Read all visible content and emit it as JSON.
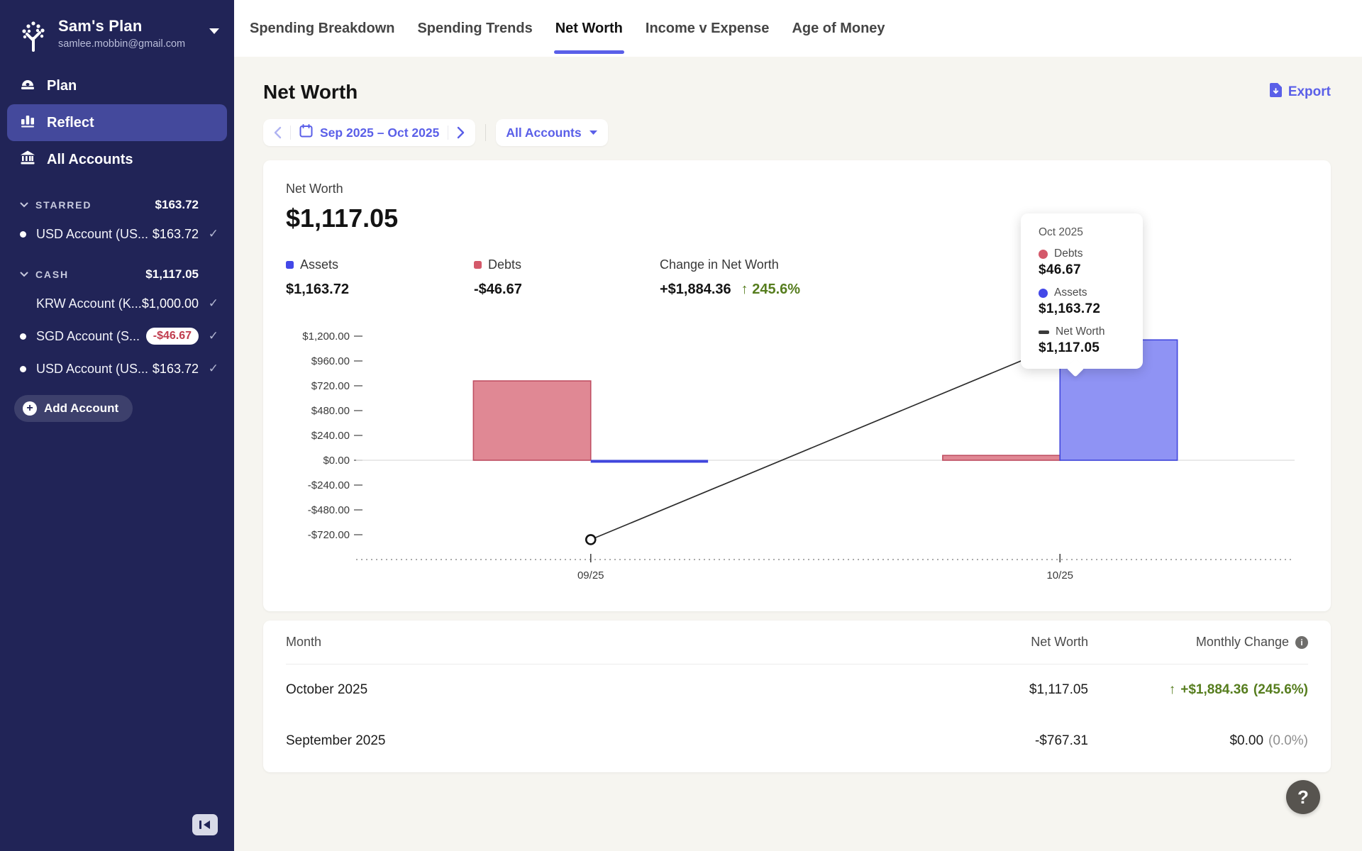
{
  "sidebar": {
    "plan_name": "Sam's Plan",
    "email": "samlee.mobbin@gmail.com",
    "nav": [
      {
        "label": "Plan"
      },
      {
        "label": "Reflect"
      },
      {
        "label": "All Accounts"
      }
    ],
    "groups": [
      {
        "name": "STARRED",
        "total": "$163.72",
        "accounts": [
          {
            "name": "USD Account (US...",
            "amount": "$163.72",
            "dot": true,
            "negative": false
          }
        ]
      },
      {
        "name": "CASH",
        "total": "$1,117.05",
        "accounts": [
          {
            "name": "KRW Account (K...",
            "amount": "$1,000.00",
            "dot": false,
            "negative": false
          },
          {
            "name": "SGD Account (S...",
            "amount": "-$46.67",
            "dot": true,
            "negative": true
          },
          {
            "name": "USD Account (US...",
            "amount": "$163.72",
            "dot": true,
            "negative": false
          }
        ]
      }
    ],
    "add_account_label": "Add Account",
    "check_glyph": "✓"
  },
  "topnav": {
    "tabs": [
      "Spending Breakdown",
      "Spending Trends",
      "Net Worth",
      "Income v Expense",
      "Age of Money"
    ],
    "active_tab": "Net Worth"
  },
  "page": {
    "title": "Net Worth",
    "date_range": "Sep 2025 – Oct 2025",
    "accounts_filter": "All Accounts",
    "export_label": "Export"
  },
  "summary": {
    "net_worth_label": "Net Worth",
    "net_worth_value": "$1,117.05",
    "assets_label": "Assets",
    "assets_value": "$1,163.72",
    "debts_label": "Debts",
    "debts_value": "-$46.67",
    "change_label": "Change in Net Worth",
    "change_value": "+$1,884.36",
    "change_arrow": "↑",
    "change_pct": "245.6%"
  },
  "tooltip": {
    "title": "Oct 2025",
    "rows": [
      {
        "label": "Debts",
        "value": "$46.67",
        "swatch": "#d4596a"
      },
      {
        "label": "Assets",
        "value": "$1,163.72",
        "swatch": "#4348e8"
      },
      {
        "label": "Net Worth",
        "value": "$1,117.05",
        "swatch": "#3a3a3a"
      }
    ]
  },
  "chart_data": {
    "type": "bar+line",
    "title": "Net Worth by month",
    "categories": [
      "09/25",
      "10/25"
    ],
    "series": [
      {
        "name": "Debts",
        "type": "bar",
        "values": [
          767.31,
          46.67
        ],
        "color_fill": "rgba(212,90,107,0.72)",
        "color_border": "#c04f63"
      },
      {
        "name": "Assets",
        "type": "bar",
        "values": [
          0,
          1163.72
        ],
        "color_fill": "rgba(105,111,240,0.75)",
        "color_border": "#4046dd"
      },
      {
        "name": "Net Worth",
        "type": "line",
        "values": [
          -767.31,
          1117.05
        ],
        "color": "#2b2b2b",
        "marker": "open-circle"
      }
    ],
    "ylim": [
      -720,
      1200
    ],
    "ytick_step": 240,
    "ytick_labels": [
      "$1,200.00",
      "$960.00",
      "$720.00",
      "$480.00",
      "$240.00",
      "$0.00",
      "-$240.00",
      "-$480.00",
      "-$720.00"
    ],
    "grid": "zero-line-only",
    "legend_position": "none"
  },
  "table": {
    "headers": {
      "month": "Month",
      "net_worth": "Net Worth",
      "change": "Monthly Change"
    },
    "rows": [
      {
        "month": "October 2025",
        "net_worth": "$1,117.05",
        "change_arrow": "↑",
        "change_amount": "+$1,884.36",
        "change_pct": "(245.6%)",
        "positive": true
      },
      {
        "month": "September 2025",
        "net_worth": "-$767.31",
        "change_amount": "$0.00",
        "change_pct": "(0.0%)",
        "positive": false
      }
    ]
  },
  "help_label": "?",
  "colors": {
    "accent": "#5a5fe8",
    "sidebar": "#212457",
    "sidebar_selected": "#44499c",
    "green": "#567d1e",
    "negative_red": "#c03c4e",
    "assets_blue": "#4348e8",
    "debts_red": "#d4596a",
    "background": "#f6f5f0"
  }
}
